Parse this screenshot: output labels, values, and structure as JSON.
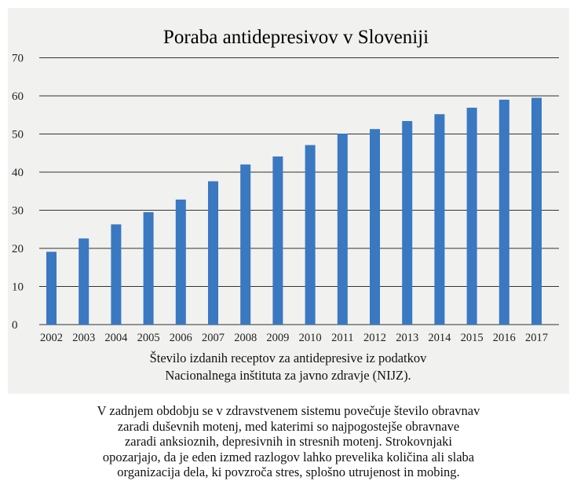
{
  "chart_data": {
    "type": "bar",
    "title": "Poraba antidepresivov v Sloveniji",
    "categories": [
      "2002",
      "2003",
      "2004",
      "2005",
      "2006",
      "2007",
      "2008",
      "2009",
      "2010",
      "2011",
      "2012",
      "2013",
      "2014",
      "2015",
      "2016",
      "2017"
    ],
    "values": [
      19.1,
      22.6,
      26.3,
      29.5,
      32.8,
      37.6,
      42.0,
      44.1,
      47.1,
      50.1,
      51.3,
      53.4,
      55.2,
      56.9,
      59.0,
      59.5
    ],
    "ylim": [
      0,
      70
    ],
    "yticks": [
      0,
      10,
      20,
      30,
      40,
      50,
      60,
      70
    ],
    "xlabel": "",
    "ylabel": "",
    "grid": true,
    "bar_color": "#3a78c1",
    "caption": [
      "Število izdanih receptov za antidepresive iz podatkov",
      "Nacionalnega inštituta za javno zdravje (NIJZ)."
    ]
  },
  "body_text": [
    "V zadnjem obdobju se v zdravstvenem sistemu povečuje število obravnav",
    "zaradi duševnih motenj, med katerimi so najpogostejše obravnave",
    "zaradi anksioznih, depresivnih in stresnih motenj. Strokovnjaki",
    "opozarjajo, da je eden izmed razlogov lahko prevelika količina ali slaba",
    "organizacija dela, ki povzroča stres, splošno utrujenost in mobing."
  ]
}
